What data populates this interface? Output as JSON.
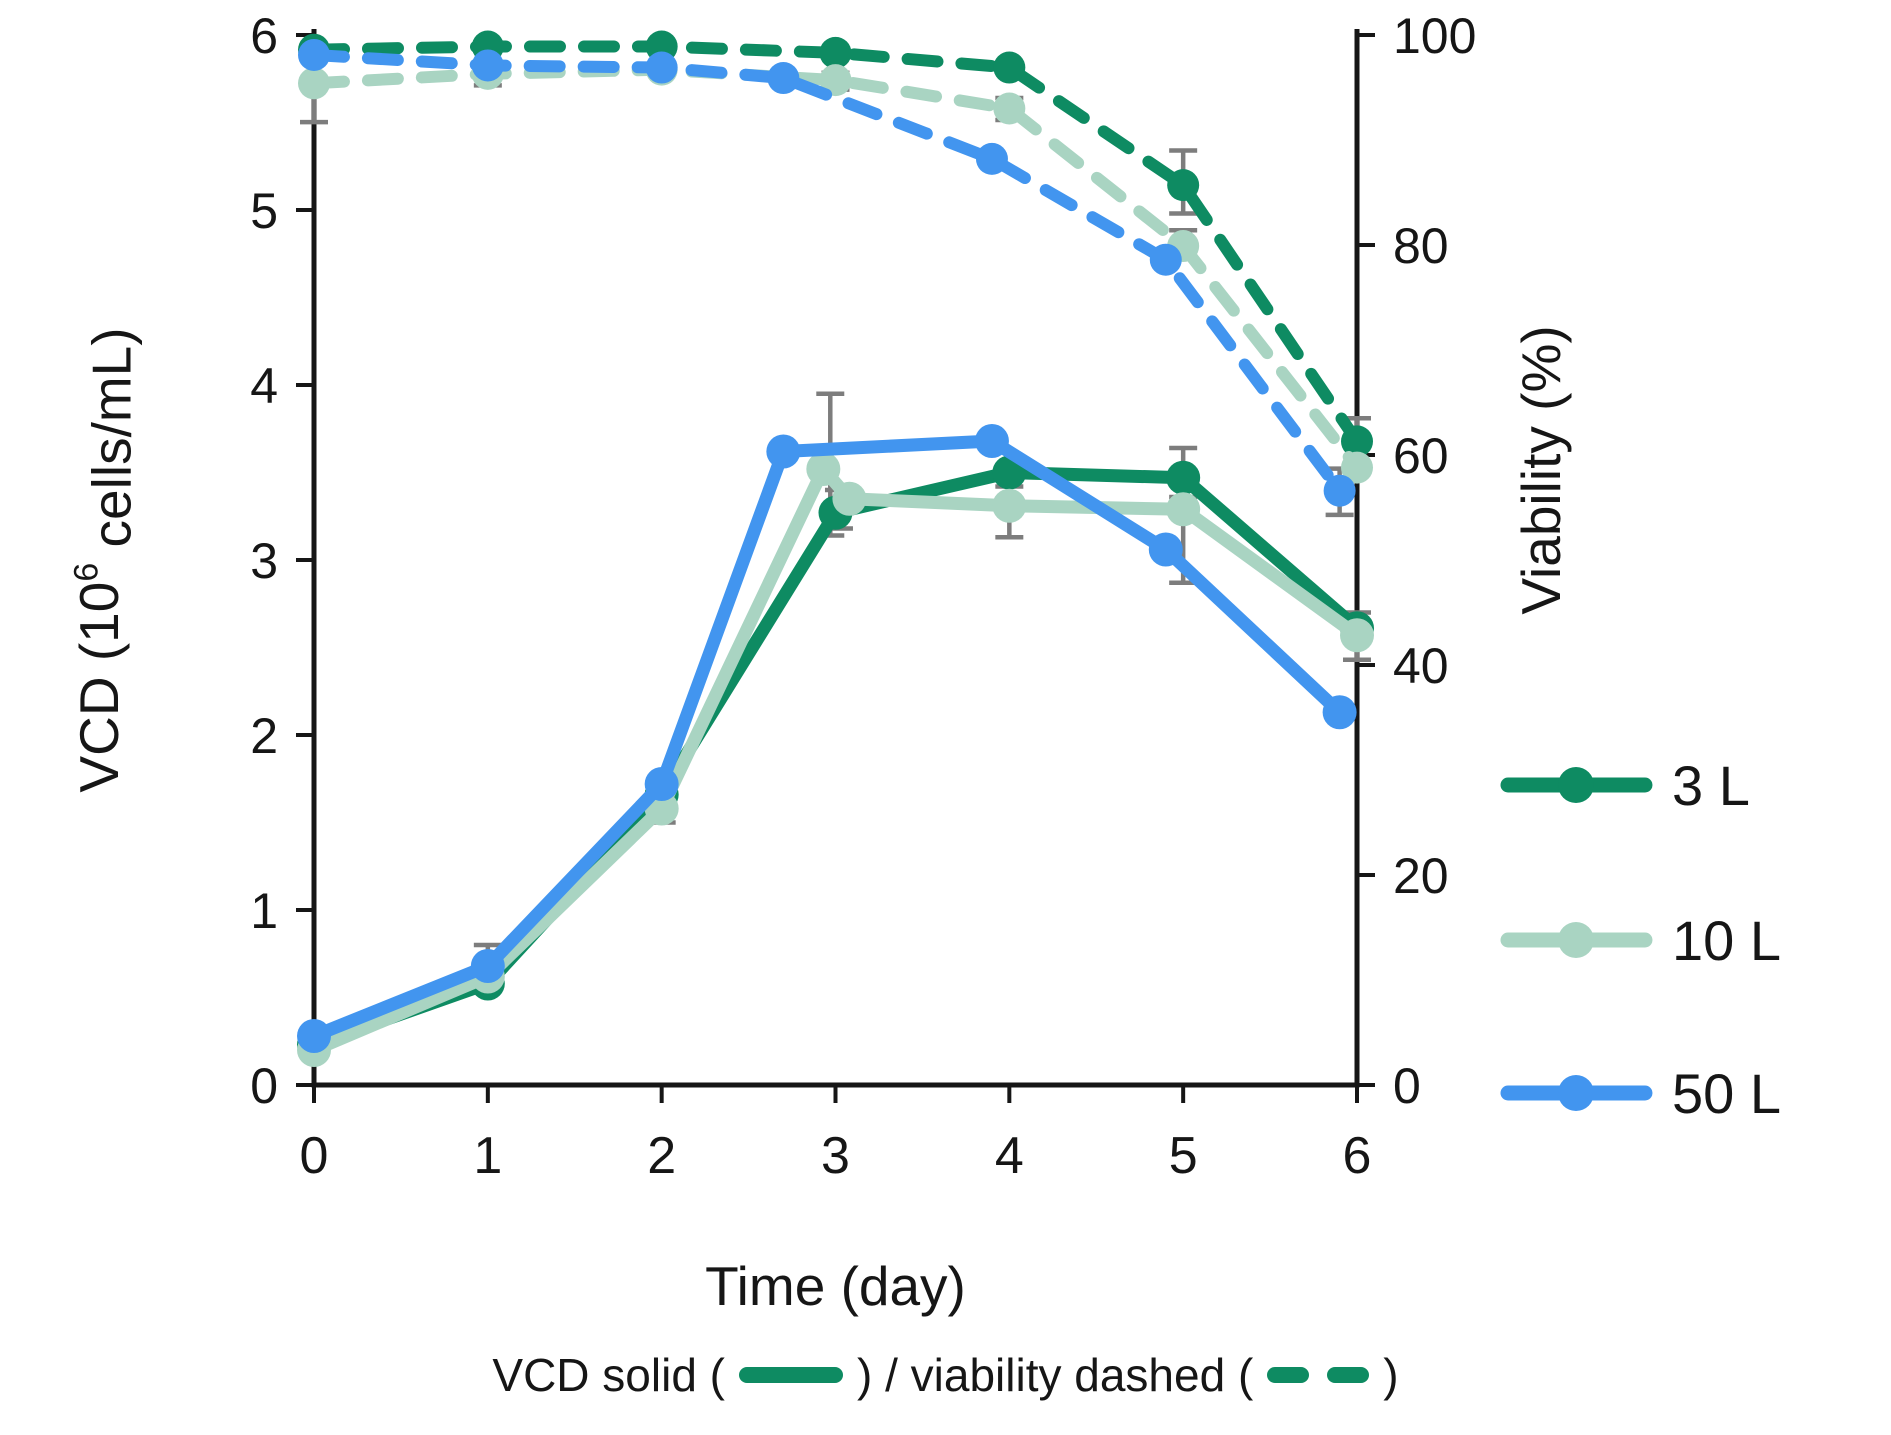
{
  "figure": {
    "background": "#ffffff",
    "axis_color": "#161616",
    "error_bar_color": "#7d7d7d"
  },
  "axes": {
    "x": {
      "label": "Time (day)",
      "ticks": [
        0,
        1,
        2,
        3,
        4,
        5,
        6
      ],
      "range": [
        0,
        6
      ]
    },
    "y_left": {
      "label_parts": [
        "VCD (10",
        "6",
        " cells/mL)"
      ],
      "ticks": [
        0,
        1,
        2,
        3,
        4,
        5,
        6
      ],
      "range": [
        0,
        6
      ]
    },
    "y_right": {
      "label": "Viability (%)",
      "ticks": [
        0,
        20,
        40,
        60,
        80,
        100
      ],
      "range": [
        0,
        100
      ]
    }
  },
  "legend": {
    "entries": [
      {
        "label": "3 L",
        "color": "#0e8b62"
      },
      {
        "label": "10 L",
        "color": "#a9d4c2"
      },
      {
        "label": "50 L",
        "color": "#4295ef"
      }
    ]
  },
  "caption": {
    "part1": "VCD solid (",
    "part2": ") / viability dashed (",
    "part3": ")",
    "swatch_color": "#0e8b62"
  },
  "chart_data": {
    "type": "line",
    "title": "",
    "xlabel": "Time (day)",
    "ylabel_left": "VCD (10^6 cells/mL)",
    "ylabel_right": "Viability (%)",
    "xlim": [
      0,
      6
    ],
    "ylim_left": [
      0,
      6
    ],
    "ylim_right": [
      0,
      100
    ],
    "grid": false,
    "legend_position": "right",
    "line_style_note": "VCD plotted as solid lines, viability as dashed lines, both with circular markers",
    "series": [
      {
        "name": "3 L",
        "color": "#0e8b62",
        "vcd": {
          "x": [
            0,
            1,
            2,
            3,
            4,
            5,
            6
          ],
          "y": [
            0.23,
            0.58,
            1.66,
            3.27,
            3.5,
            3.47,
            2.61
          ]
        },
        "viability": {
          "x": [
            0,
            1,
            2,
            3,
            4,
            5,
            6
          ],
          "y": [
            98.6,
            98.9,
            98.9,
            98.3,
            96.9,
            85.7,
            61.3
          ]
        }
      },
      {
        "name": "10 L",
        "color": "#a9d4c2",
        "vcd": {
          "x": [
            0,
            1,
            2,
            2.93,
            3.08,
            4,
            5,
            6
          ],
          "y": [
            0.2,
            0.62,
            1.58,
            3.52,
            3.35,
            3.31,
            3.29,
            2.57
          ]
        },
        "viability": {
          "x": [
            0,
            1,
            2,
            3,
            4,
            5,
            6
          ],
          "y": [
            95.4,
            96.3,
            96.7,
            95.7,
            93.0,
            79.9,
            58.8
          ]
        }
      },
      {
        "name": "50 L",
        "color": "#4295ef",
        "vcd": {
          "x": [
            0,
            1,
            2,
            2.7,
            3.9,
            4.9,
            5.9
          ],
          "y": [
            0.28,
            0.68,
            1.72,
            3.62,
            3.68,
            3.06,
            2.13
          ]
        },
        "viability": {
          "x": [
            0,
            1,
            2,
            2.7,
            3.9,
            4.9,
            5.9
          ],
          "y": [
            98.1,
            97.1,
            96.9,
            95.9,
            88.2,
            78.6,
            56.6
          ]
        }
      }
    ],
    "error_bars": {
      "vcd": [
        {
          "x": 1,
          "lo": 0.54,
          "hi": 0.8
        },
        {
          "x": 2,
          "lo": 1.5,
          "hi": 1.63
        },
        {
          "x": 2.97,
          "lo": 3.14,
          "hi": 3.95
        },
        {
          "x": 3.02,
          "lo": 3.18,
          "hi": 3.4
        },
        {
          "x": 4,
          "lo": 3.13,
          "hi": 3.42
        },
        {
          "x": 5,
          "lo": 3.31,
          "hi": 3.64
        },
        {
          "x": 5,
          "lo": 2.87,
          "hi": 3.36
        },
        {
          "x": 6,
          "lo": 2.43,
          "hi": 2.7
        }
      ],
      "viability": [
        {
          "x": 0,
          "lo": 91.7,
          "hi": 95.9
        },
        {
          "x": 1,
          "lo": 95.2,
          "hi": 97.0
        },
        {
          "x": 3,
          "lo": 94.8,
          "hi": 96.4
        },
        {
          "x": 4,
          "lo": 91.9,
          "hi": 94.0
        },
        {
          "x": 5,
          "lo": 83.0,
          "hi": 89.0
        },
        {
          "x": 5,
          "lo": 78.9,
          "hi": 81.4
        },
        {
          "x": 6,
          "lo": 59.2,
          "hi": 63.5
        },
        {
          "x": 5.9,
          "lo": 54.3,
          "hi": 58.7
        }
      ]
    }
  }
}
